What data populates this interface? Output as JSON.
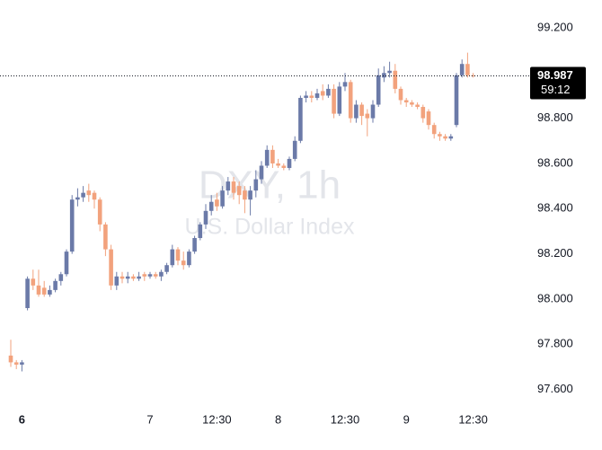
{
  "chart_data": {
    "type": "candlestick",
    "watermark_title": "DXY, 1h",
    "watermark_subtitle": "U.S. Dollar Index",
    "categories": [
      null,
      null,
      "6",
      null,
      null,
      null,
      null,
      null,
      null,
      null,
      null,
      null,
      null,
      null,
      null,
      null,
      null,
      null,
      null,
      null,
      null,
      null,
      null,
      null,
      null,
      "7",
      null,
      null,
      null,
      null,
      null,
      null,
      null,
      null,
      null,
      null,
      null,
      "12:30",
      null,
      null,
      null,
      null,
      null,
      null,
      null,
      null,
      null,
      null,
      "8",
      null,
      null,
      null,
      null,
      null,
      null,
      null,
      null,
      null,
      null,
      null,
      "12:30",
      null,
      null,
      null,
      null,
      null,
      null,
      null,
      null,
      null,
      null,
      "9",
      null,
      null,
      null,
      null,
      null,
      null,
      null,
      null,
      null,
      null,
      null,
      "12:30"
    ],
    "open": [
      97.75,
      97.72,
      97.71,
      97.96,
      98.09,
      98.06,
      98.05,
      98.02,
      98.04,
      98.08,
      98.11,
      98.21,
      98.44,
      98.45,
      98.48,
      98.47,
      98.44,
      98.33,
      98.22,
      98.06,
      98.1,
      98.09,
      98.1,
      98.09,
      98.11,
      98.1,
      98.11,
      98.1,
      98.12,
      98.15,
      98.22,
      98.17,
      98.15,
      98.21,
      98.27,
      98.33,
      98.39,
      98.44,
      98.41,
      98.48,
      98.52,
      98.5,
      98.48,
      98.44,
      98.48,
      98.53,
      98.59,
      98.66,
      98.6,
      98.59,
      98.58,
      98.62,
      98.7,
      98.89,
      98.9,
      98.89,
      98.92,
      98.9,
      98.93,
      98.82,
      98.94,
      98.96,
      98.8,
      98.86,
      98.82,
      98.8,
      98.86,
      98.98,
      99.0,
      99.01,
      98.93,
      98.88,
      98.87,
      98.86,
      98.85,
      98.83,
      98.77,
      98.73,
      98.72,
      98.71,
      98.77,
      98.99,
      99.04,
      98.99
    ],
    "high": [
      97.82,
      97.73,
      97.73,
      98.1,
      98.13,
      98.13,
      98.08,
      98.06,
      98.09,
      98.12,
      98.22,
      98.46,
      98.49,
      98.5,
      98.51,
      98.48,
      98.45,
      98.34,
      98.24,
      98.12,
      98.12,
      98.12,
      98.11,
      98.12,
      98.12,
      98.12,
      98.12,
      98.13,
      98.16,
      98.24,
      98.23,
      98.21,
      98.22,
      98.28,
      98.34,
      98.42,
      98.46,
      98.47,
      98.5,
      98.54,
      98.54,
      98.52,
      98.5,
      98.5,
      98.57,
      98.61,
      98.68,
      98.68,
      98.62,
      98.6,
      98.63,
      98.72,
      98.9,
      98.92,
      98.92,
      98.93,
      98.95,
      98.95,
      98.95,
      98.96,
      99.0,
      98.97,
      98.88,
      98.87,
      98.84,
      98.88,
      99.02,
      99.03,
      99.05,
      99.04,
      98.94,
      98.89,
      98.88,
      98.87,
      98.86,
      98.84,
      98.78,
      98.74,
      98.73,
      98.73,
      99.0,
      99.06,
      99.09,
      99.0
    ],
    "low": [
      97.7,
      97.69,
      97.68,
      97.95,
      98.04,
      98.01,
      98.01,
      98.01,
      98.03,
      98.06,
      98.1,
      98.2,
      98.41,
      98.43,
      98.43,
      98.4,
      98.3,
      98.19,
      98.04,
      98.04,
      98.07,
      98.07,
      98.08,
      98.08,
      98.08,
      98.09,
      98.09,
      98.08,
      98.11,
      98.14,
      98.15,
      98.13,
      98.14,
      98.2,
      98.26,
      98.31,
      98.37,
      98.39,
      98.4,
      98.46,
      98.44,
      98.42,
      98.38,
      98.37,
      98.45,
      98.51,
      98.58,
      98.58,
      98.58,
      98.57,
      98.57,
      98.61,
      98.69,
      98.87,
      98.87,
      98.88,
      98.88,
      98.89,
      98.8,
      98.81,
      98.92,
      98.78,
      98.78,
      98.77,
      98.72,
      98.78,
      98.85,
      98.96,
      98.98,
      98.91,
      98.86,
      98.85,
      98.85,
      98.84,
      98.78,
      98.75,
      98.71,
      98.7,
      98.7,
      98.7,
      98.76,
      98.98,
      98.98,
      98.98
    ],
    "close": [
      97.72,
      97.71,
      97.72,
      98.09,
      98.06,
      98.02,
      98.02,
      98.04,
      98.08,
      98.11,
      98.21,
      98.44,
      98.45,
      98.47,
      98.46,
      98.44,
      98.33,
      98.22,
      98.06,
      98.1,
      98.09,
      98.1,
      98.09,
      98.1,
      98.1,
      98.11,
      98.1,
      98.12,
      98.15,
      98.22,
      98.17,
      98.15,
      98.21,
      98.27,
      98.33,
      98.39,
      98.43,
      98.41,
      98.48,
      98.52,
      98.47,
      98.46,
      98.44,
      98.48,
      98.53,
      98.59,
      98.66,
      98.6,
      98.59,
      98.58,
      98.62,
      98.7,
      98.89,
      98.9,
      98.89,
      98.91,
      98.9,
      98.93,
      98.82,
      98.94,
      98.96,
      98.8,
      98.86,
      98.81,
      98.8,
      98.86,
      98.99,
      99.0,
      99.01,
      98.93,
      98.88,
      98.87,
      98.86,
      98.85,
      98.8,
      98.77,
      98.73,
      98.72,
      98.71,
      98.72,
      98.99,
      99.04,
      98.99,
      98.987
    ],
    "up_color": "#6b7aa8",
    "down_color": "#f2a27d",
    "ylim": [
      97.515,
      99.323
    ],
    "yticks": [
      {
        "value": 97.6,
        "label": "97.600"
      },
      {
        "value": 97.8,
        "label": "97.800"
      },
      {
        "value": 98.0,
        "label": "98.000"
      },
      {
        "value": 98.2,
        "label": "98.200"
      },
      {
        "value": 98.4,
        "label": "98.400"
      },
      {
        "value": 98.6,
        "label": "98.600"
      },
      {
        "value": 98.8,
        "label": "98.800"
      },
      {
        "value": 99.2,
        "label": "99.200"
      }
    ],
    "last_price": 98.987,
    "countdown": "59:12"
  }
}
